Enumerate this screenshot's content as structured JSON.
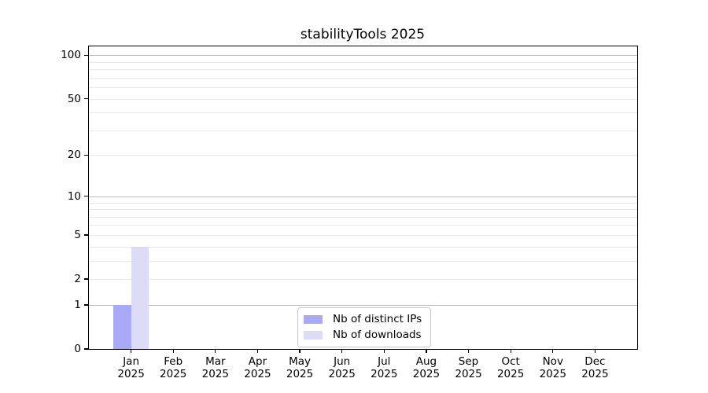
{
  "figure": {
    "title": "stabilityTools 2025"
  },
  "chart_data": {
    "type": "bar",
    "title": "stabilityTools 2025",
    "xlabel": "",
    "ylabel": "",
    "yscale": "log1p",
    "ylim": [
      0,
      115
    ],
    "yticks": [
      0,
      1,
      2,
      5,
      10,
      20,
      50,
      100
    ],
    "decade_gridlines": [
      1,
      10,
      100
    ],
    "minor_gridlines": [
      2,
      3,
      4,
      5,
      6,
      7,
      8,
      9,
      20,
      30,
      40,
      50,
      60,
      70,
      80,
      90
    ],
    "grid": "horizontal",
    "legend_position": "bottom-center",
    "categories": [
      "Jan",
      "Feb",
      "Mar",
      "Apr",
      "May",
      "Jun",
      "Jul",
      "Aug",
      "Sep",
      "Oct",
      "Nov",
      "Dec"
    ],
    "xtick_year": "2025",
    "series": [
      {
        "name": "Nb of distinct IPs",
        "color": "#a9a9f6",
        "values": [
          1,
          0,
          0,
          0,
          0,
          0,
          0,
          0,
          0,
          0,
          0,
          0
        ]
      },
      {
        "name": "Nb of downloads",
        "color": "#dcdcf8",
        "values": [
          4,
          0,
          0,
          0,
          0,
          0,
          0,
          0,
          0,
          0,
          0,
          0
        ]
      }
    ]
  },
  "colors": {
    "background": "#ffffff",
    "spine": "#000000",
    "grid_decade": "#bdbdbd",
    "grid_minor": "#e9e9e9",
    "text": "#000000",
    "legend_border": "#c9c9c9",
    "bar_distinct_ips": "#a9a9f6",
    "bar_downloads": "#dcdcf8"
  }
}
